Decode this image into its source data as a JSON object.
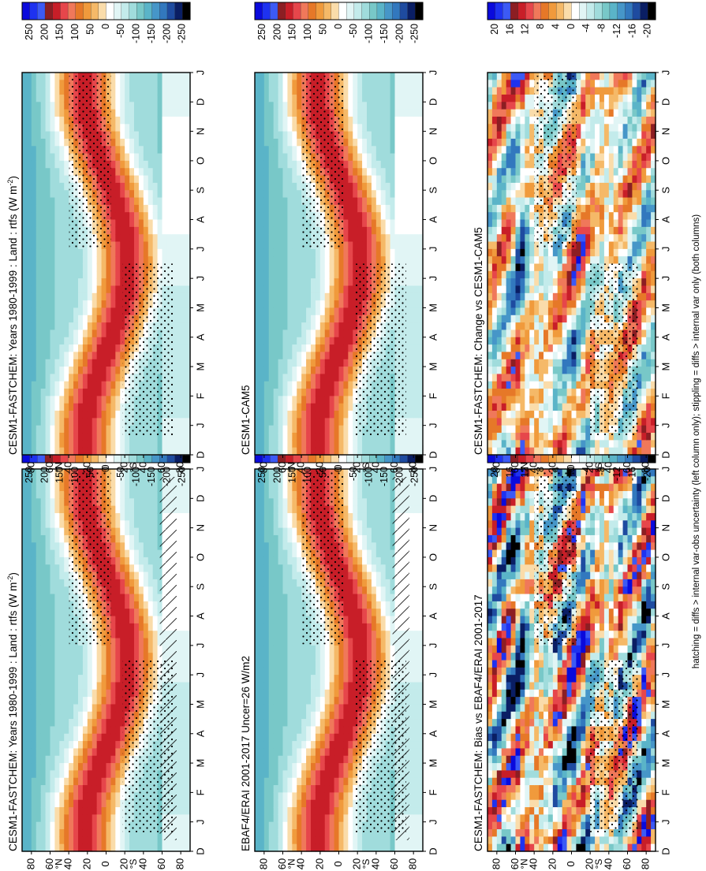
{
  "footnote": "hatching = diffs > internal var-obs uncertainty (left column only); stippling = diffs > internal var only (both columns)",
  "panel_order": [
    "col_left",
    "col_right"
  ],
  "chart_data": [
    {
      "id": "p1",
      "type": "heatmap",
      "title": "CESM1-FASTCHEM: Years 1980-1999 : Land : rtfs (W m",
      "title_sup": "-2",
      "title_close": ")",
      "x_ticks": [
        "D",
        "J",
        "F",
        "M",
        "A",
        "M",
        "J",
        "J",
        "A",
        "S",
        "O",
        "N",
        "D",
        "J"
      ],
      "y_ticks": [
        "80",
        "60",
        "40",
        "20",
        "0",
        "20",
        "40",
        "60",
        "80"
      ],
      "y_hemi": [
        "°N",
        "°S"
      ],
      "ylim": [
        -90,
        90
      ],
      "colorbar": {
        "labels": [
          "250",
          "200",
          "150",
          "100",
          "50",
          "0",
          "-50",
          "-100",
          "-150",
          "-200",
          "-250"
        ],
        "colors": [
          "#0a0adc",
          "#1e32f0",
          "#3c5af5",
          "#8c1e23",
          "#c81e28",
          "#e6464b",
          "#f0785a",
          "#e67828",
          "#f09a3c",
          "#f5b968",
          "#fadcaa",
          "#ffffff",
          "#e1f5f5",
          "#c3ebeb",
          "#a0dcdc",
          "#78c8c8",
          "#5ab4c8",
          "#4696c8",
          "#3278be",
          "#1e4ba0",
          "#0a1e64",
          "#000000"
        ]
      },
      "amplitude": 150,
      "noise": 0,
      "hatch": true,
      "stipple": true
    },
    {
      "id": "p2",
      "type": "heatmap",
      "title": "EBAF4/ERAI 2001-2017 Uncer=26 W/m2",
      "x_ticks": [
        "D",
        "J",
        "F",
        "M",
        "A",
        "M",
        "J",
        "J",
        "A",
        "S",
        "O",
        "N",
        "D",
        "J"
      ],
      "y_ticks": [
        "80",
        "60",
        "40",
        "20",
        "0",
        "20",
        "40",
        "60",
        "80"
      ],
      "y_hemi": [
        "°N",
        "°S"
      ],
      "ylim": [
        -90,
        90
      ],
      "colorbar": {
        "labels": [
          "250",
          "200",
          "150",
          "100",
          "50",
          "0",
          "-50",
          "-100",
          "-150",
          "-200",
          "-250"
        ],
        "colors": [
          "#0a0adc",
          "#1e32f0",
          "#3c5af5",
          "#8c1e23",
          "#c81e28",
          "#e6464b",
          "#f0785a",
          "#e67828",
          "#f09a3c",
          "#f5b968",
          "#fadcaa",
          "#ffffff",
          "#e1f5f5",
          "#c3ebeb",
          "#a0dcdc",
          "#78c8c8",
          "#5ab4c8",
          "#4696c8",
          "#3278be",
          "#1e4ba0",
          "#0a1e64",
          "#000000"
        ]
      },
      "amplitude": 150,
      "noise": 0,
      "hatch": true,
      "stipple": true
    },
    {
      "id": "p3",
      "type": "heatmap",
      "title": "CESM1-FASTCHEM: Bias vs EBAF4/ERAI 2001-2017",
      "x_ticks": [
        "D",
        "J",
        "F",
        "M",
        "A",
        "M",
        "J",
        "J",
        "A",
        "S",
        "O",
        "N",
        "D",
        "J"
      ],
      "y_ticks": [
        "80",
        "60",
        "40",
        "20",
        "0",
        "20",
        "40",
        "60",
        "80"
      ],
      "y_hemi": [
        "°N",
        "°S"
      ],
      "ylim": [
        -90,
        90
      ],
      "colorbar": {
        "labels": [
          "20",
          "16",
          "12",
          "8",
          "4",
          "0",
          "-4",
          "-8",
          "-12",
          "-16",
          "-20"
        ],
        "colors": [
          "#0a0adc",
          "#1e32f0",
          "#3c5af5",
          "#8c1e23",
          "#c81e28",
          "#e6464b",
          "#f0785a",
          "#e67828",
          "#f09a3c",
          "#f5b968",
          "#fadcaa",
          "#ffffff",
          "#e1f5f5",
          "#c3ebeb",
          "#a0dcdc",
          "#78c8c8",
          "#5ab4c8",
          "#4696c8",
          "#3278be",
          "#1e4ba0",
          "#0a1e64",
          "#000000"
        ]
      },
      "amplitude": 0,
      "noise": 1,
      "hatch": false,
      "stipple": true
    },
    {
      "id": "p4",
      "type": "heatmap",
      "title": "CESM1-FASTCHEM: Years 1980-1999 : Land : rtfs (W m",
      "title_sup": "-2",
      "title_close": ")",
      "x_ticks": [
        "D",
        "J",
        "F",
        "M",
        "A",
        "M",
        "J",
        "J",
        "A",
        "S",
        "O",
        "N",
        "D",
        "J"
      ],
      "y_ticks": [
        "80",
        "60",
        "40",
        "20",
        "0",
        "20",
        "40",
        "60",
        "80"
      ],
      "y_hemi": [
        "°N",
        "°S"
      ],
      "ylim": [
        -90,
        90
      ],
      "colorbar": {
        "labels": [
          "250",
          "200",
          "150",
          "100",
          "50",
          "0",
          "-50",
          "-100",
          "-150",
          "-200",
          "-250"
        ],
        "colors": [
          "#0a0adc",
          "#1e32f0",
          "#3c5af5",
          "#8c1e23",
          "#c81e28",
          "#e6464b",
          "#f0785a",
          "#e67828",
          "#f09a3c",
          "#f5b968",
          "#fadcaa",
          "#ffffff",
          "#e1f5f5",
          "#c3ebeb",
          "#a0dcdc",
          "#78c8c8",
          "#5ab4c8",
          "#4696c8",
          "#3278be",
          "#1e4ba0",
          "#0a1e64",
          "#000000"
        ]
      },
      "amplitude": 150,
      "noise": 0,
      "hatch": false,
      "stipple": true
    },
    {
      "id": "p5",
      "type": "heatmap",
      "title": "CESM1-CAM5",
      "x_ticks": [
        "D",
        "J",
        "F",
        "M",
        "A",
        "M",
        "J",
        "J",
        "A",
        "S",
        "O",
        "N",
        "D",
        "J"
      ],
      "y_ticks": [
        "80",
        "60",
        "40",
        "20",
        "0",
        "20",
        "40",
        "60",
        "80"
      ],
      "y_hemi": [
        "°N",
        "°S"
      ],
      "ylim": [
        -90,
        90
      ],
      "colorbar": {
        "labels": [
          "250",
          "200",
          "150",
          "100",
          "50",
          "0",
          "-50",
          "-100",
          "-150",
          "-200",
          "-250"
        ],
        "colors": [
          "#0a0adc",
          "#1e32f0",
          "#3c5af5",
          "#8c1e23",
          "#c81e28",
          "#e6464b",
          "#f0785a",
          "#e67828",
          "#f09a3c",
          "#f5b968",
          "#fadcaa",
          "#ffffff",
          "#e1f5f5",
          "#c3ebeb",
          "#a0dcdc",
          "#78c8c8",
          "#5ab4c8",
          "#4696c8",
          "#3278be",
          "#1e4ba0",
          "#0a1e64",
          "#000000"
        ]
      },
      "amplitude": 150,
      "noise": 0,
      "hatch": false,
      "stipple": true
    },
    {
      "id": "p6",
      "type": "heatmap",
      "title": "CESM1-FASTCHEM: Change vs CESM1-CAM5",
      "x_ticks": [
        "D",
        "J",
        "F",
        "M",
        "A",
        "M",
        "J",
        "J",
        "A",
        "S",
        "O",
        "N",
        "D",
        "J"
      ],
      "y_ticks": [
        "80",
        "60",
        "40",
        "20",
        "0",
        "20",
        "40",
        "60",
        "80"
      ],
      "y_hemi": [
        "°N",
        "°S"
      ],
      "ylim": [
        -90,
        90
      ],
      "colorbar": {
        "labels": [
          "20",
          "16",
          "12",
          "8",
          "4",
          "0",
          "-4",
          "-8",
          "-12",
          "-16",
          "-20"
        ],
        "colors": [
          "#0a0adc",
          "#1e32f0",
          "#3c5af5",
          "#8c1e23",
          "#c81e28",
          "#e6464b",
          "#f0785a",
          "#e67828",
          "#f09a3c",
          "#f5b968",
          "#fadcaa",
          "#ffffff",
          "#e1f5f5",
          "#c3ebeb",
          "#a0dcdc",
          "#78c8c8",
          "#5ab4c8",
          "#4696c8",
          "#3278be",
          "#1e4ba0",
          "#0a1e64",
          "#000000"
        ]
      },
      "amplitude": 0,
      "noise": 0.7,
      "hatch": false,
      "stipple": true
    }
  ]
}
